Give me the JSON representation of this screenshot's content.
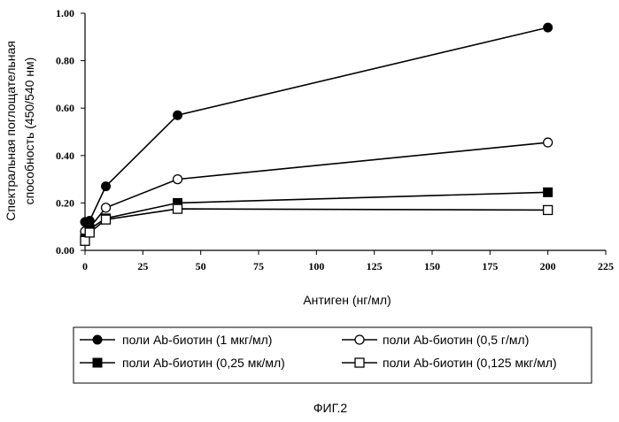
{
  "chart_data": {
    "type": "line",
    "xlabel": "Антиген (нг/мл)",
    "ylabel_lines": [
      "Спектральная поглощательная",
      "способность (450/540 нм)"
    ],
    "xlim": [
      0,
      225
    ],
    "ylim": [
      0,
      1.0
    ],
    "x_ticks": [
      0,
      25,
      50,
      75,
      100,
      125,
      150,
      175,
      200,
      225
    ],
    "y_ticks": [
      "0.00",
      "0.20",
      "0.40",
      "0.60",
      "0.80",
      "1.00"
    ],
    "grid": false,
    "legend_position": "bottom",
    "series": [
      {
        "name": "поли Ab-биотин (1 мкг/мл)",
        "marker": "filled-circle",
        "x": [
          0,
          2,
          9,
          40,
          200
        ],
        "y": [
          0.12,
          0.125,
          0.27,
          0.57,
          0.94
        ]
      },
      {
        "name": "поли Ab-биотин (0,5 г/мл)",
        "marker": "open-circle",
        "x": [
          0,
          2,
          9,
          40,
          200
        ],
        "y": [
          0.08,
          0.095,
          0.18,
          0.3,
          0.455
        ]
      },
      {
        "name": "поли Ab-биотин (0,25 мк/мл)",
        "marker": "filled-square",
        "x": [
          0,
          2,
          9,
          40,
          200
        ],
        "y": [
          0.05,
          0.09,
          0.135,
          0.2,
          0.245
        ]
      },
      {
        "name": "поли Ab-биотин (0,125 мкг/мл)",
        "marker": "open-square",
        "x": [
          0,
          2,
          9,
          40,
          200
        ],
        "y": [
          0.04,
          0.075,
          0.13,
          0.175,
          0.17
        ]
      }
    ]
  },
  "caption": "ФИГ.2"
}
